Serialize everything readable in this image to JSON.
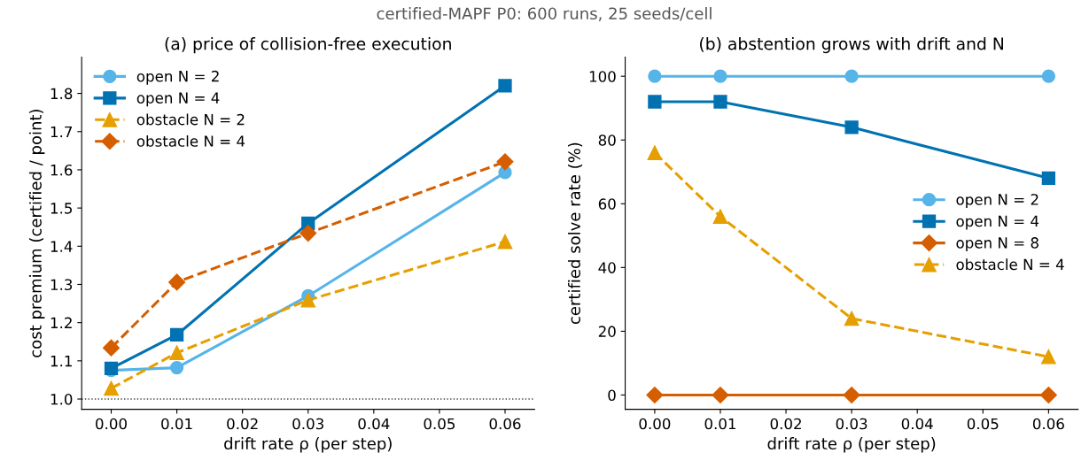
{
  "chart_data": [
    {
      "type": "line",
      "title": "(a) price of collision-free execution",
      "xlabel": "drift rate ρ (per step)",
      "ylabel": "cost premium (certified / point)",
      "x": [
        0.0,
        0.01,
        0.03,
        0.06
      ],
      "series": [
        {
          "name": "open N = 2",
          "color": "#56b4e9",
          "marker": "circle",
          "line_style": "solid",
          "values": [
            1.075,
            1.082,
            1.27,
            1.593
          ]
        },
        {
          "name": "open N = 4",
          "color": "#0072b2",
          "marker": "square",
          "line_style": "solid",
          "values": [
            1.08,
            1.168,
            1.46,
            1.82
          ]
        },
        {
          "name": "obstacle N = 2",
          "color": "#e69f00",
          "marker": "triangle",
          "line_style": "dashed",
          "values": [
            1.028,
            1.121,
            1.259,
            1.412
          ]
        },
        {
          "name": "obstacle N = 4",
          "color": "#d55e00",
          "marker": "diamond",
          "line_style": "dashed",
          "values": [
            1.134,
            1.306,
            1.434,
            1.621
          ]
        }
      ],
      "ref_lines": [
        {
          "axis": "y",
          "value": 1.0,
          "color": "#444444",
          "line_style": "dotted"
        }
      ],
      "xlim": [
        -0.0045,
        0.0645
      ],
      "xticks": [
        {
          "value": 0,
          "label": "0.00"
        },
        0.01,
        0.02,
        0.03,
        0.04,
        0.05,
        0.06
      ],
      "ylim": [
        0.973,
        1.895
      ],
      "yticks": [
        {
          "value": 1,
          "label": "1.0"
        },
        1.1,
        1.2,
        1.3,
        1.4,
        1.5,
        1.6,
        1.7,
        1.8
      ],
      "legend": "top left",
      "grid": false,
      "annotations": [
        "certified-MAPF P0: 600 runs, 25 seeds/cell"
      ]
    },
    {
      "type": "line",
      "title": "(b) abstention grows with drift and N",
      "xlabel": "drift rate ρ (per step)",
      "ylabel": "certified solve rate (%)",
      "x": [
        0.0,
        0.01,
        0.03,
        0.06
      ],
      "series": [
        {
          "name": "open N = 2",
          "color": "#56b4e9",
          "marker": "circle",
          "line_style": "solid",
          "values": [
            100,
            100,
            100,
            100
          ]
        },
        {
          "name": "open N = 4",
          "color": "#0072b2",
          "marker": "square",
          "line_style": "solid",
          "values": [
            92,
            92,
            84,
            68
          ]
        },
        {
          "name": "open N = 8",
          "color": "#d55e00",
          "marker": "diamond",
          "line_style": "solid",
          "values": [
            0,
            0,
            0,
            0
          ]
        },
        {
          "name": "obstacle N = 4",
          "color": "#e69f00",
          "marker": "triangle",
          "line_style": "dashed",
          "values": [
            76,
            56,
            24,
            12
          ]
        }
      ],
      "xlim": [
        -0.0045,
        0.0645
      ],
      "xticks": [
        {
          "value": 0,
          "label": "0.00"
        },
        0.01,
        0.02,
        0.03,
        0.04,
        0.05,
        0.06
      ],
      "ylim": [
        -4.5,
        106
      ],
      "yticks": [
        0,
        20,
        40,
        60,
        80,
        100
      ],
      "legend": "right",
      "grid": false
    }
  ]
}
